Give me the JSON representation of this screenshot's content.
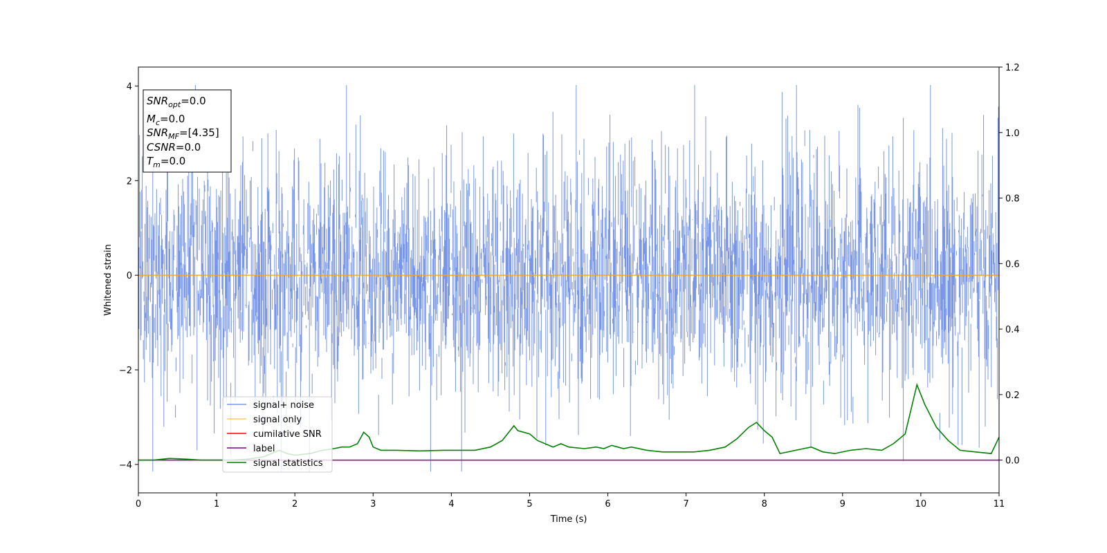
{
  "chart_data": {
    "type": "line",
    "xlabel": "Time (s)",
    "ylabel": "Whitened strain",
    "xlim": [
      0,
      11
    ],
    "ylim": [
      -4.6,
      4.4
    ],
    "y2lim": [
      -0.1,
      1.2
    ],
    "xticks": [
      "0",
      "1",
      "2",
      "3",
      "4",
      "5",
      "6",
      "7",
      "8",
      "9",
      "10",
      "11"
    ],
    "yticks": [
      "4",
      "2",
      "0",
      "−2",
      "−4"
    ],
    "y2ticks": [
      "1.2",
      "1.0",
      "0.8",
      "0.6",
      "0.4",
      "0.2",
      "0.0"
    ],
    "grid": false,
    "legend_placement": "lower-left",
    "colors": {
      "signal_noise": "#4169e1",
      "signal_only": "#ffa500",
      "cumulative_snr": "#ff0000",
      "label": "#800080",
      "signal_statistics": "#008000"
    },
    "series": [
      {
        "name": "signal+ noise",
        "axis": "left",
        "note": "dense noise, approx range -4.1 to 4.0 with typical band -2 to 2"
      },
      {
        "name": "signal only",
        "axis": "left",
        "x": [
          0,
          11
        ],
        "values": [
          0,
          0
        ]
      },
      {
        "name": "cumilative SNR",
        "axis": "right"
      },
      {
        "name": "label",
        "axis": "right",
        "x": [
          0,
          11
        ],
        "values": [
          0,
          0
        ]
      },
      {
        "name": "signal statistics",
        "axis": "right",
        "x": [
          0,
          0.2,
          0.4,
          0.6,
          0.8,
          1.0,
          1.2,
          1.4,
          1.6,
          1.8,
          1.9,
          2.0,
          2.2,
          2.35,
          2.5,
          2.6,
          2.7,
          2.8,
          2.88,
          2.95,
          3.0,
          3.1,
          3.3,
          3.6,
          3.9,
          4.1,
          4.3,
          4.5,
          4.65,
          4.75,
          4.8,
          4.85,
          5.0,
          5.1,
          5.3,
          5.4,
          5.5,
          5.7,
          5.85,
          5.95,
          6.05,
          6.2,
          6.3,
          6.5,
          6.7,
          6.9,
          7.1,
          7.3,
          7.5,
          7.65,
          7.8,
          7.9,
          8.0,
          8.1,
          8.2,
          8.4,
          8.6,
          8.75,
          8.9,
          9.1,
          9.3,
          9.5,
          9.65,
          9.8,
          9.95,
          10.05,
          10.2,
          10.35,
          10.5,
          10.7,
          10.9,
          11.0
        ],
        "values": [
          0.0,
          0.0,
          0.005,
          0.003,
          0.0,
          0.0,
          0.0,
          0.003,
          0.01,
          0.03,
          0.02,
          0.015,
          0.02,
          0.03,
          0.035,
          0.04,
          0.04,
          0.05,
          0.085,
          0.07,
          0.04,
          0.03,
          0.03,
          0.028,
          0.03,
          0.03,
          0.03,
          0.04,
          0.06,
          0.09,
          0.105,
          0.09,
          0.08,
          0.06,
          0.04,
          0.05,
          0.04,
          0.035,
          0.04,
          0.035,
          0.045,
          0.035,
          0.04,
          0.03,
          0.025,
          0.025,
          0.025,
          0.03,
          0.04,
          0.065,
          0.1,
          0.115,
          0.09,
          0.07,
          0.02,
          0.03,
          0.04,
          0.025,
          0.02,
          0.03,
          0.035,
          0.03,
          0.05,
          0.08,
          0.23,
          0.17,
          0.1,
          0.06,
          0.03,
          0.025,
          0.02,
          0.07
        ]
      }
    ],
    "annotation": [
      {
        "main": "SNR",
        "sub": "opt",
        "value": "=0.0"
      },
      {
        "main": "M",
        "sub": "c",
        "value": "=0.0"
      },
      {
        "main": "SNR",
        "sub": "MF",
        "value": "=[4.35]"
      },
      {
        "main": "CSNR",
        "sub": "",
        "value": "=0.0"
      },
      {
        "main": "T",
        "sub": "m",
        "value": "=0.0"
      }
    ]
  }
}
